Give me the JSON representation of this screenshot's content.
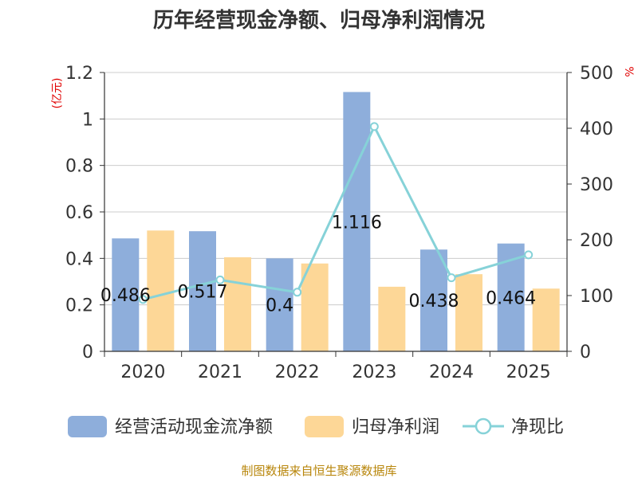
{
  "chart_data": {
    "type": "bar",
    "title": "历年经营现金净额、归母净利润情况",
    "categories": [
      "2020",
      "2021",
      "2022",
      "2023",
      "2024",
      "2025"
    ],
    "series": [
      {
        "name": "经营活动现金流净额",
        "kind": "bar",
        "axis": "left",
        "color": "#8eaedb",
        "values": [
          0.486,
          0.517,
          0.4,
          1.116,
          0.438,
          0.464
        ]
      },
      {
        "name": "归母净利润",
        "kind": "bar",
        "axis": "left",
        "color": "#fdd797",
        "values": [
          0.52,
          0.405,
          0.378,
          0.278,
          0.332,
          0.27
        ]
      },
      {
        "name": "净现比",
        "kind": "line",
        "axis": "right",
        "color": "#86d2d8",
        "values": [
          93,
          128,
          106,
          403,
          132,
          173
        ]
      }
    ],
    "data_labels": [
      "0.486",
      "0.517",
      "0.4",
      "1.116",
      "0.438",
      "0.464"
    ],
    "left_axis": {
      "unit_label": "(亿元)",
      "min": 0,
      "max": 1.2,
      "ticks": [
        0,
        0.2,
        0.4,
        0.6,
        0.8,
        1,
        1.2
      ],
      "tick_labels": [
        "0",
        "0.2",
        "0.4",
        "0.6",
        "0.8",
        "1",
        "1.2"
      ]
    },
    "right_axis": {
      "unit_label": "%",
      "min": 0,
      "max": 500,
      "ticks": [
        0,
        100,
        200,
        300,
        400,
        500
      ],
      "tick_labels": [
        "0",
        "100",
        "200",
        "300",
        "400",
        "500"
      ]
    },
    "grid": true,
    "legend_position": "bottom",
    "source": "制图数据来自恒生聚源数据库"
  }
}
